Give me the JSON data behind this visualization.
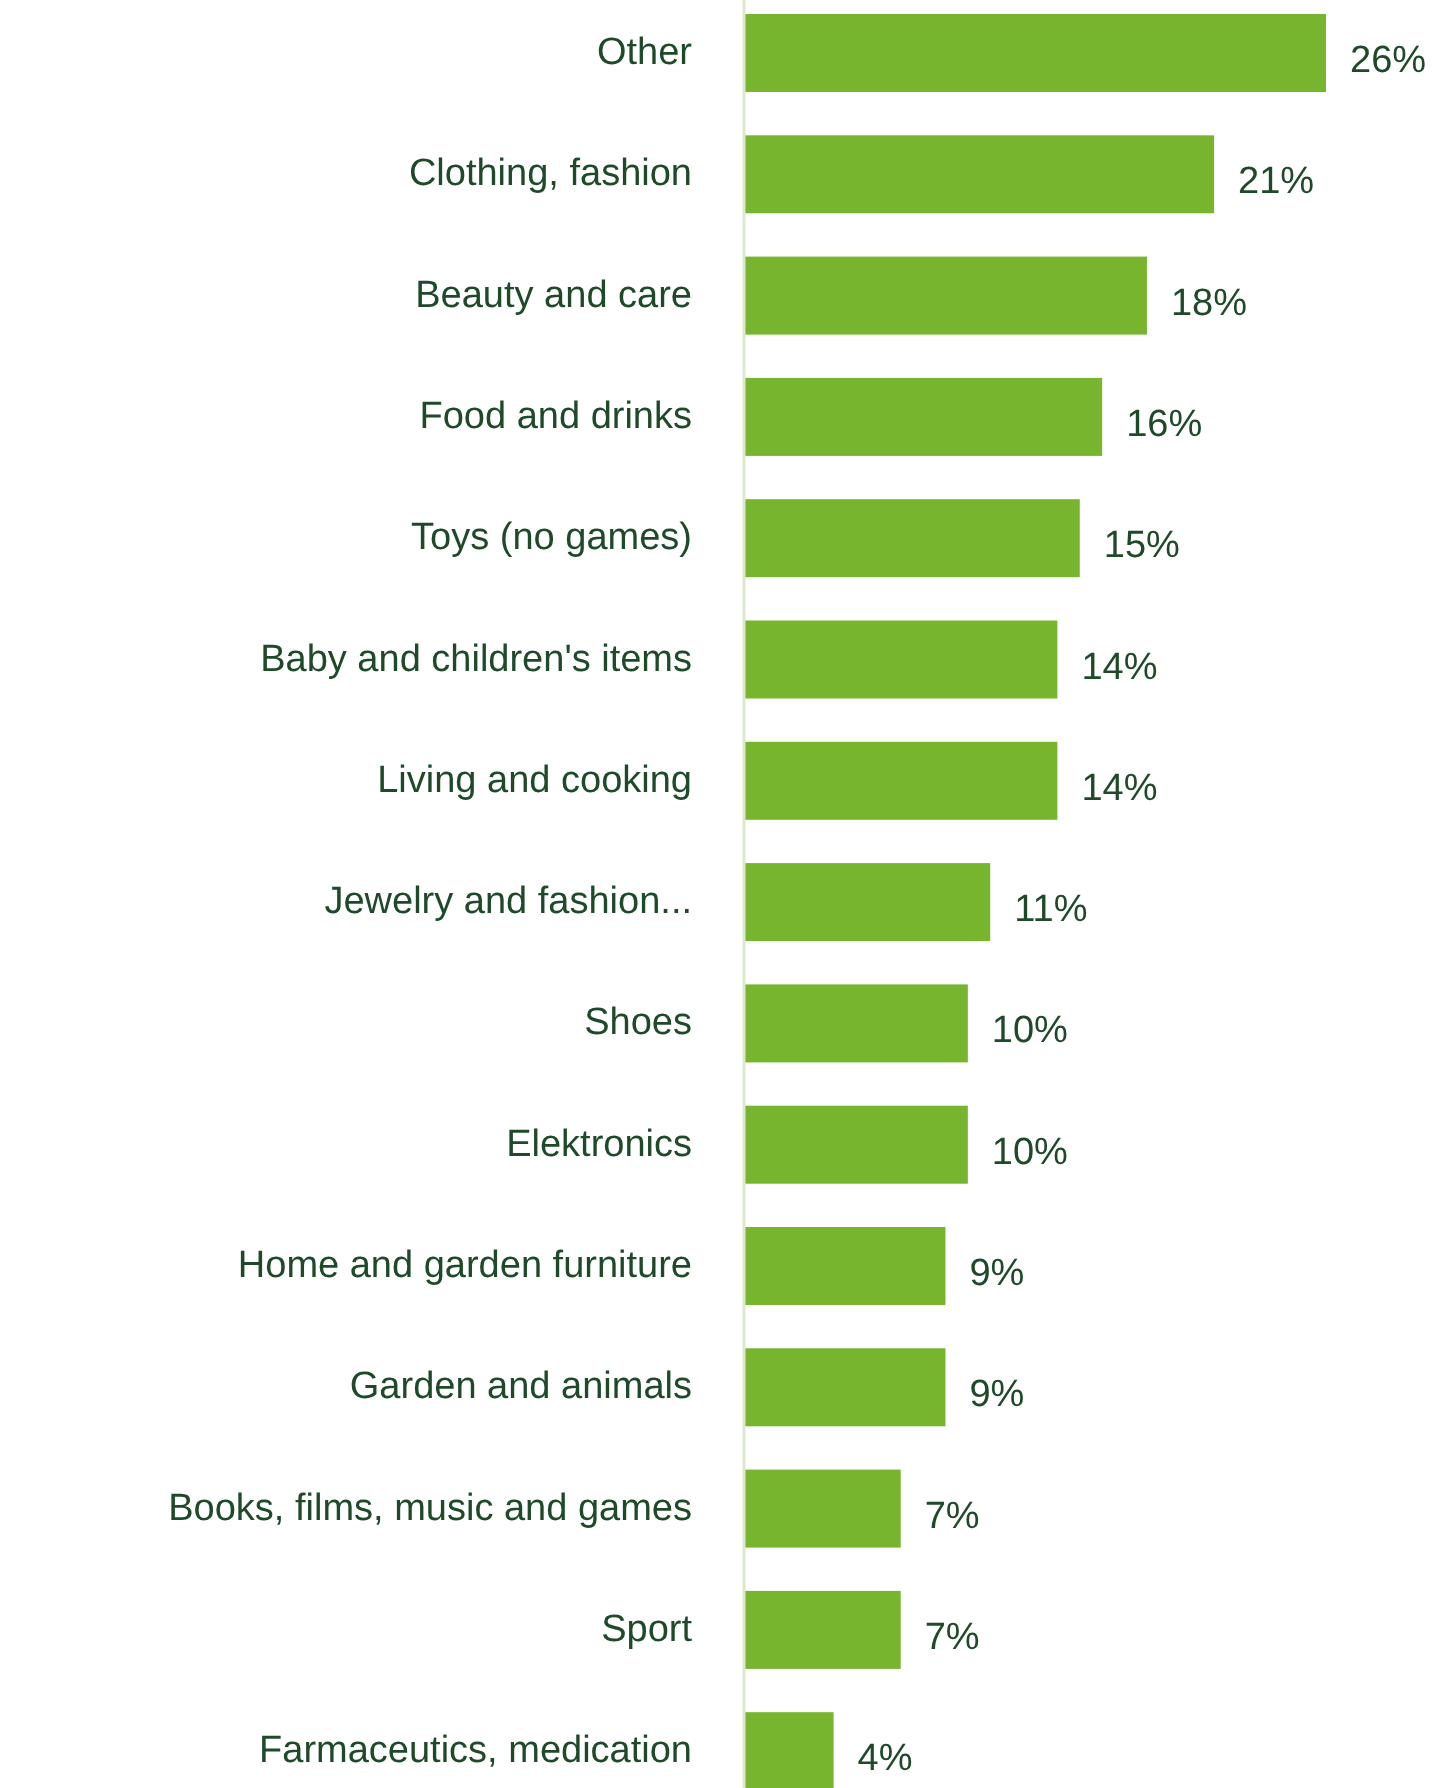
{
  "chart_data": {
    "type": "bar",
    "orientation": "horizontal",
    "categories": [
      "Other",
      "Clothing, fashion",
      "Beauty and care",
      "Food and drinks",
      "Toys (no games)",
      "Baby and children's items",
      "Living and cooking",
      "Jewelry and fashion...",
      "Shoes",
      "Elektronics",
      "Home and garden furniture",
      "Garden and animals",
      "Books, films, music and games",
      "Sport",
      "Farmaceutics, medication"
    ],
    "values": [
      26,
      21,
      18,
      16,
      15,
      14,
      14,
      11,
      10,
      10,
      9,
      9,
      7,
      7,
      4
    ],
    "value_labels": [
      "26%",
      "21%",
      "18%",
      "16%",
      "15%",
      "14%",
      "14%",
      "11%",
      "10%",
      "10%",
      "9%",
      "9%",
      "7%",
      "7%",
      "4%"
    ],
    "color": "#77b52e"
  }
}
